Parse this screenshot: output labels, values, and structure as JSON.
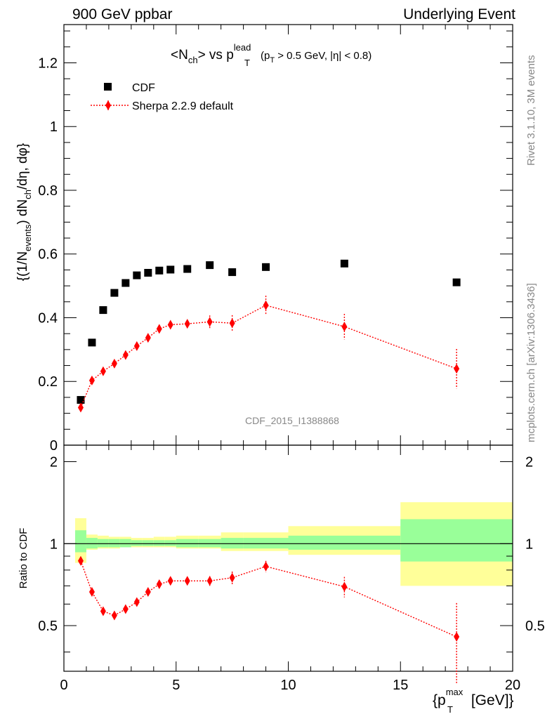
{
  "header": {
    "left": "900 GeV ppbar",
    "right": "Underlying Event"
  },
  "side_labels": {
    "rivet": "Rivet 3.1.10,  3M events",
    "mcplots": "mcplots.cern.ch [arXiv:1306.3436]"
  },
  "watermark": "CDF_2015_I1388868",
  "colors": {
    "data": "#000000",
    "mc": "#ff0000",
    "band_inner": "#99ff99",
    "band_outer": "#ffff99"
  },
  "chart_data": [
    {
      "type": "scatter",
      "panel": "main",
      "title": "<N_ch> vs p_T^lead (p_T > 0.5 GeV, |η| < 0.8)",
      "title_parts": {
        "n": "<N",
        "ch": "ch",
        "vs": "> vs p",
        "lead": "lead",
        "T": "T",
        "cuts": "(p",
        "cuts_T": "T",
        "cuts_rest": " > 0.5 GeV, |η| < 0.8)"
      },
      "ylabel_parts": {
        "a": "{(1/N",
        "events": "events",
        "b": ") dN",
        "ch": "ch",
        "c": "/dη, dφ}"
      },
      "xlim": [
        0,
        20
      ],
      "ylim": [
        0,
        1.32
      ],
      "yticks": [
        0,
        0.2,
        0.4,
        0.6,
        0.8,
        1,
        1.2
      ],
      "ytick_labels": [
        "0",
        "0.2",
        "0.4",
        "0.6",
        "0.8",
        "1",
        "1.2"
      ],
      "legend_position": "top-left",
      "series": [
        {
          "name": "CDF",
          "style": "square-markers",
          "x": [
            0.75,
            1.25,
            1.75,
            2.25,
            2.75,
            3.25,
            3.75,
            4.25,
            4.75,
            5.5,
            6.5,
            7.5,
            9.0,
            12.5,
            17.5
          ],
          "y": [
            0.142,
            0.322,
            0.424,
            0.478,
            0.509,
            0.533,
            0.541,
            0.548,
            0.551,
            0.553,
            0.565,
            0.543,
            0.559,
            0.57,
            0.511
          ]
        },
        {
          "name": "Sherpa 2.2.9 default",
          "style": "red-diamond-dotted",
          "x": [
            0.75,
            1.25,
            1.75,
            2.25,
            2.75,
            3.25,
            3.75,
            4.25,
            4.75,
            5.5,
            6.5,
            7.5,
            9.0,
            12.5,
            17.5
          ],
          "y": [
            0.118,
            0.203,
            0.232,
            0.256,
            0.283,
            0.311,
            0.337,
            0.365,
            0.378,
            0.381,
            0.387,
            0.383,
            0.439,
            0.372,
            0.24
          ],
          "err": [
            0.01,
            0.008,
            0.008,
            0.008,
            0.009,
            0.01,
            0.01,
            0.012,
            0.012,
            0.013,
            0.02,
            0.025,
            0.03,
            0.04,
            0.062
          ]
        }
      ]
    },
    {
      "type": "scatter",
      "panel": "ratio",
      "ylabel": "Ratio to CDF",
      "xlabel_parts": {
        "a": "{p",
        "T": "T",
        "max": "max",
        "b": " [GeV]}"
      },
      "xlim": [
        0,
        20
      ],
      "ylim": [
        0.34,
        2.3
      ],
      "xticks": [
        0,
        5,
        10,
        15,
        20
      ],
      "xtick_labels": [
        "0",
        "5",
        "10",
        "15",
        "20"
      ],
      "yticks": [
        0.5,
        1,
        2
      ],
      "ytick_labels": [
        "0.5",
        "1",
        "2"
      ],
      "bins": [
        0.5,
        1.0,
        1.5,
        2.0,
        2.5,
        3.0,
        3.5,
        4.0,
        4.5,
        5.0,
        6.0,
        7.0,
        8.0,
        10.0,
        15.0,
        20.0
      ],
      "band_inner": [
        [
          0.93,
          1.12
        ],
        [
          0.96,
          1.05
        ],
        [
          0.97,
          1.04
        ],
        [
          0.97,
          1.04
        ],
        [
          0.97,
          1.04
        ],
        [
          0.98,
          1.03
        ],
        [
          0.98,
          1.03
        ],
        [
          0.98,
          1.03
        ],
        [
          0.98,
          1.03
        ],
        [
          0.97,
          1.04
        ],
        [
          0.97,
          1.04
        ],
        [
          0.96,
          1.05
        ],
        [
          0.96,
          1.05
        ],
        [
          0.95,
          1.07
        ],
        [
          0.86,
          1.23
        ]
      ],
      "band_outer": [
        [
          0.85,
          1.24
        ],
        [
          0.95,
          1.08
        ],
        [
          0.96,
          1.07
        ],
        [
          0.96,
          1.06
        ],
        [
          0.97,
          1.06
        ],
        [
          0.97,
          1.05
        ],
        [
          0.97,
          1.05
        ],
        [
          0.97,
          1.06
        ],
        [
          0.97,
          1.06
        ],
        [
          0.96,
          1.07
        ],
        [
          0.96,
          1.07
        ],
        [
          0.94,
          1.1
        ],
        [
          0.94,
          1.1
        ],
        [
          0.91,
          1.16
        ],
        [
          0.7,
          1.42
        ]
      ],
      "series": [
        {
          "name": "Sherpa 2.2.9 default / CDF",
          "style": "red-diamond-dotted",
          "x": [
            0.75,
            1.25,
            1.75,
            2.25,
            2.75,
            3.25,
            3.75,
            4.25,
            4.75,
            5.5,
            6.5,
            7.5,
            9.0,
            12.5,
            17.5
          ],
          "y": [
            0.865,
            0.665,
            0.565,
            0.545,
            0.575,
            0.61,
            0.665,
            0.71,
            0.73,
            0.73,
            0.73,
            0.75,
            0.825,
            0.695,
            0.455
          ],
          "err": [
            0.02,
            0.02,
            0.015,
            0.015,
            0.015,
            0.015,
            0.015,
            0.02,
            0.02,
            0.02,
            0.03,
            0.04,
            0.04,
            0.06,
            0.15
          ]
        }
      ]
    }
  ]
}
